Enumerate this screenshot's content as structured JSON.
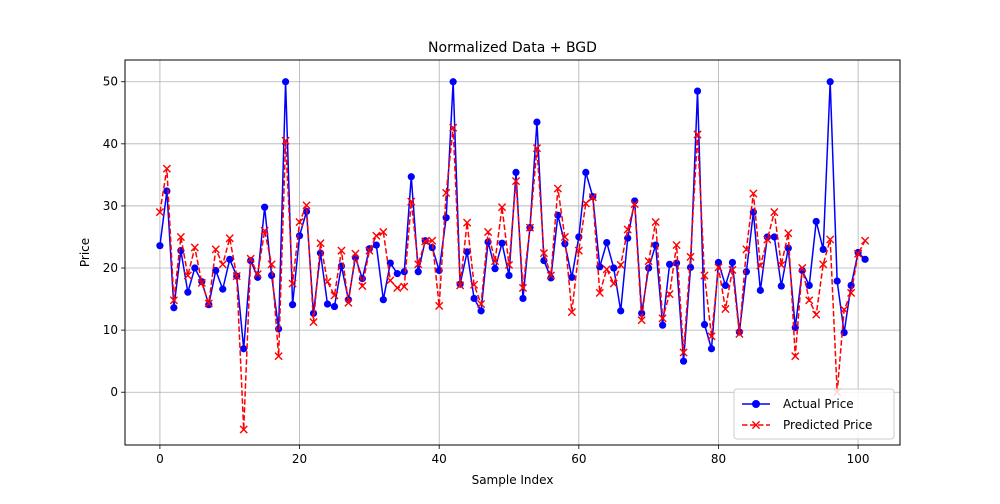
{
  "chart_data": {
    "type": "line",
    "title": "Normalized Data + BGD",
    "xlabel": "Sample Index",
    "ylabel": "Price",
    "xlim": [
      -5,
      106
    ],
    "ylim": [
      -8.5,
      53.5
    ],
    "xticks": [
      0,
      20,
      40,
      60,
      80,
      100
    ],
    "yticks": [
      0,
      10,
      20,
      30,
      40,
      50
    ],
    "grid": true,
    "legend_position": "lower-right",
    "series": [
      {
        "name": "Actual Price",
        "color": "#0000ff",
        "line_style": "solid",
        "marker": "circle",
        "values": [
          23.6,
          32.4,
          13.6,
          22.8,
          16.1,
          20.0,
          17.8,
          14.1,
          19.6,
          16.6,
          21.4,
          18.7,
          7.0,
          21.2,
          18.5,
          29.8,
          18.8,
          10.2,
          50.0,
          14.1,
          25.2,
          29.1,
          12.7,
          22.4,
          14.2,
          13.8,
          20.3,
          14.9,
          21.7,
          18.3,
          23.1,
          23.7,
          14.9,
          20.8,
          19.1,
          19.4,
          34.7,
          19.4,
          24.4,
          23.3,
          19.6,
          28.1,
          50.0,
          17.4,
          22.6,
          15.1,
          13.1,
          24.2,
          19.9,
          24.0,
          18.8,
          35.4,
          15.1,
          26.5,
          43.5,
          21.2,
          18.4,
          28.5,
          23.9,
          18.5,
          25.0,
          35.4,
          31.5,
          20.2,
          24.1,
          20.0,
          13.1,
          24.8,
          30.8,
          12.7,
          20.0,
          23.7,
          10.8,
          20.6,
          20.8,
          5.0,
          20.1,
          48.5,
          10.9,
          7.0,
          20.9,
          17.2,
          20.9,
          9.7,
          19.4,
          29.0,
          16.4,
          25.0,
          25.0,
          17.1,
          23.2,
          10.4,
          19.6,
          17.2,
          27.5,
          23.0,
          50.0,
          17.9,
          9.6,
          17.2,
          22.5,
          21.4
        ]
      },
      {
        "name": "Predicted Price",
        "color": "#ff0000",
        "line_style": "dashed",
        "marker": "x",
        "values": [
          29.0,
          36.0,
          14.8,
          25.0,
          18.8,
          23.3,
          17.6,
          14.3,
          23.0,
          20.6,
          24.8,
          18.7,
          -6.0,
          21.5,
          19.0,
          26.0,
          20.6,
          5.8,
          40.5,
          17.5,
          27.4,
          30.1,
          11.3,
          24.0,
          17.8,
          15.6,
          22.8,
          14.4,
          22.3,
          17.1,
          22.8,
          25.2,
          25.8,
          18.0,
          16.8,
          17.0,
          30.7,
          20.6,
          24.3,
          24.4,
          13.9,
          32.1,
          42.6,
          17.2,
          27.3,
          17.3,
          14.2,
          25.8,
          21.1,
          29.8,
          20.5,
          34.0,
          16.8,
          26.5,
          39.3,
          22.4,
          18.8,
          32.8,
          25.0,
          12.9,
          22.8,
          30.4,
          31.4,
          16.0,
          19.8,
          17.5,
          20.5,
          26.2,
          30.3,
          11.6,
          21.1,
          27.4,
          11.9,
          15.8,
          23.7,
          6.4,
          21.8,
          41.5,
          18.8,
          9.0,
          20.1,
          13.4,
          19.7,
          9.4,
          23.0,
          32.0,
          20.4,
          24.6,
          29.0,
          20.5,
          25.6,
          5.8,
          20.0,
          14.8,
          12.5,
          20.6,
          24.6,
          0.0,
          13.3,
          16.0,
          22.3,
          24.4
        ]
      }
    ]
  }
}
